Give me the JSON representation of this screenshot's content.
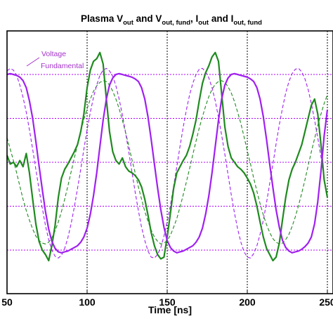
{
  "chart_data": {
    "type": "line",
    "title": {
      "parts": [
        {
          "text": "Plasma V",
          "sub": false
        },
        {
          "text": "out",
          "sub": true
        },
        {
          "text": " and V",
          "sub": false
        },
        {
          "text": "out, fund",
          "sub": true
        },
        {
          "text": ", I",
          "sub": false
        },
        {
          "text": "out",
          "sub": true
        },
        {
          "text": " and I",
          "sub": false
        },
        {
          "text": "out, fund",
          "sub": true
        }
      ]
    },
    "xlabel": "Time [ns]",
    "ylabel": "",
    "xlim": [
      50,
      250
    ],
    "xticks": [
      50,
      100,
      150,
      200,
      250
    ],
    "xtick_labels": [
      "50",
      "100",
      "150",
      "200",
      "250"
    ],
    "ylim": [
      -1.3,
      1.3
    ],
    "yticks": [
      -1.0,
      -0.5,
      0.0,
      0.5,
      1.0
    ],
    "grid": true,
    "annotations": [
      {
        "text": "Voltage"
      },
      {
        "text": "Fundamental"
      }
    ],
    "colors": {
      "voltage": "#a020f0",
      "current": "#1f8a1f",
      "x_grid": "#000000",
      "y_grid": "#b000ff"
    },
    "period_ns": 115,
    "series": [
      {
        "key": "vout",
        "style": "solid",
        "color": "#a020f0",
        "x": [
          50,
          52,
          54,
          56,
          58,
          60,
          62,
          64,
          66,
          68,
          70,
          72,
          74,
          76,
          78,
          80,
          82,
          84,
          86,
          88,
          90,
          92,
          94,
          96,
          98,
          100,
          102,
          104,
          106,
          108,
          110,
          112,
          114,
          116,
          118,
          120,
          122,
          124,
          126,
          128,
          130,
          132,
          134,
          136,
          138,
          140,
          142,
          144,
          146,
          148,
          150,
          152,
          154,
          156,
          158,
          160,
          162,
          164,
          166,
          168,
          170,
          172,
          174,
          176,
          178,
          180,
          182,
          184,
          186,
          188,
          190,
          192,
          194,
          196,
          198,
          200,
          202,
          204,
          206,
          208,
          210,
          212,
          214,
          216,
          218,
          220,
          222,
          224,
          226,
          228,
          230,
          232,
          234,
          236,
          238,
          240,
          242,
          244,
          246,
          248,
          250
        ],
        "y": [
          1.0,
          1.01,
          1.0,
          0.99,
          0.97,
          0.93,
          0.85,
          0.7,
          0.5,
          0.24,
          -0.04,
          -0.31,
          -0.56,
          -0.76,
          -0.9,
          -0.98,
          -1.02,
          -1.03,
          -1.02,
          -1.01,
          -0.99,
          -0.97,
          -0.95,
          -0.91,
          -0.85,
          -0.75,
          -0.59,
          -0.38,
          -0.12,
          0.18,
          0.48,
          0.72,
          0.88,
          0.96,
          1.0,
          1.01,
          1.0,
          0.99,
          0.98,
          0.97,
          0.95,
          0.92,
          0.85,
          0.72,
          0.52,
          0.26,
          -0.02,
          -0.29,
          -0.54,
          -0.74,
          -0.89,
          -0.97,
          -1.01,
          -1.03,
          -1.02,
          -1.01,
          -0.99,
          -0.97,
          -0.95,
          -0.91,
          -0.85,
          -0.75,
          -0.59,
          -0.38,
          -0.12,
          0.18,
          0.48,
          0.72,
          0.88,
          0.96,
          1.0,
          1.01,
          1.0,
          0.99,
          0.98,
          0.97,
          0.95,
          0.92,
          0.85,
          0.72,
          0.52,
          0.26,
          -0.02,
          -0.29,
          -0.54,
          -0.74,
          -0.89,
          -0.97,
          -1.01,
          -1.03,
          -1.02,
          -1.01,
          -0.99,
          -0.96,
          -0.92,
          -0.85,
          -0.7,
          -0.45,
          -0.1,
          0.3,
          0.6
        ]
      },
      {
        "key": "vout_fund",
        "style": "dashed",
        "color": "#a020f0",
        "x": [
          50,
          52,
          54,
          56,
          58,
          60,
          62,
          64,
          66,
          68,
          70,
          72,
          74,
          76,
          78,
          80,
          82,
          84,
          86,
          88,
          90,
          92,
          94,
          96,
          98,
          100,
          102,
          104,
          106,
          108,
          110,
          112,
          114,
          116,
          118,
          120,
          122,
          124,
          126,
          128,
          130,
          132,
          134,
          136,
          138,
          140,
          142,
          144,
          146,
          148,
          150,
          152,
          154,
          156,
          158,
          160,
          162,
          164,
          166,
          168,
          170,
          172,
          174,
          176,
          178,
          180,
          182,
          184,
          186,
          188,
          190,
          192,
          194,
          196,
          198,
          200,
          202,
          204,
          206,
          208,
          210,
          212,
          214,
          216,
          218,
          220,
          222,
          224,
          226,
          228,
          230,
          232,
          234,
          236,
          238,
          240,
          242,
          244,
          246,
          248,
          250
        ],
        "y": [
          1.04,
          1.07,
          1.05,
          0.99,
          0.88,
          0.74,
          0.57,
          0.37,
          0.15,
          -0.08,
          -0.31,
          -0.52,
          -0.72,
          -0.88,
          -1.0,
          -1.07,
          -1.09,
          -1.06,
          -0.98,
          -0.86,
          -0.7,
          -0.51,
          -0.3,
          -0.08,
          0.15,
          0.37,
          0.57,
          0.74,
          0.88,
          0.99,
          1.05,
          1.07,
          1.04,
          0.98,
          0.87,
          0.72,
          0.54,
          0.34,
          0.12,
          -0.11,
          -0.34,
          -0.55,
          -0.74,
          -0.89,
          -1.01,
          -1.08,
          -1.09,
          -1.05,
          -0.97,
          -0.84,
          -0.68,
          -0.49,
          -0.27,
          -0.05,
          0.18,
          0.4,
          0.6,
          0.77,
          0.9,
          1.0,
          1.06,
          1.07,
          1.03,
          0.96,
          0.85,
          0.7,
          0.51,
          0.31,
          0.09,
          -0.14,
          -0.37,
          -0.58,
          -0.76,
          -0.91,
          -1.02,
          -1.08,
          -1.09,
          -1.04,
          -0.95,
          -0.82,
          -0.66,
          -0.46,
          -0.24,
          -0.02,
          0.21,
          0.43,
          0.62,
          0.79,
          0.92,
          1.01,
          1.06,
          1.07,
          1.03,
          0.95,
          0.83,
          0.67,
          0.48,
          0.28,
          0.06,
          -0.17,
          -0.4
        ]
      },
      {
        "key": "iout",
        "style": "solid",
        "color": "#1f8a1f",
        "x": [
          50,
          52,
          54,
          56,
          58,
          60,
          62,
          64,
          66,
          68,
          70,
          72,
          74,
          76,
          78,
          80,
          82,
          84,
          86,
          88,
          90,
          92,
          94,
          96,
          98,
          100,
          102,
          104,
          106,
          108,
          110,
          112,
          114,
          116,
          118,
          120,
          122,
          124,
          126,
          128,
          130,
          132,
          134,
          136,
          138,
          140,
          142,
          144,
          146,
          148,
          150,
          152,
          154,
          156,
          158,
          160,
          162,
          164,
          166,
          168,
          170,
          172,
          174,
          176,
          178,
          180,
          182,
          184,
          186,
          188,
          190,
          192,
          194,
          196,
          198,
          200,
          202,
          204,
          206,
          208,
          210,
          212,
          214,
          216,
          218,
          220,
          222,
          224,
          226,
          228,
          230,
          232,
          234,
          236,
          238,
          240,
          242,
          244,
          246,
          248,
          250
        ],
        "y": [
          0.08,
          -0.02,
          0.0,
          -0.05,
          0.02,
          -0.05,
          0.1,
          -0.12,
          -0.42,
          -0.7,
          -0.9,
          -1.0,
          -1.05,
          -1.12,
          -0.95,
          -0.72,
          -0.4,
          -0.18,
          -0.08,
          -0.02,
          0.05,
          0.12,
          0.2,
          0.35,
          0.55,
          0.85,
          1.05,
          1.15,
          1.18,
          1.25,
          1.12,
          0.72,
          0.35,
          0.12,
          0.02,
          -0.02,
          0.05,
          -0.05,
          -0.1,
          -0.12,
          -0.15,
          -0.2,
          -0.28,
          -0.42,
          -0.6,
          -0.8,
          -0.95,
          -1.05,
          -1.1,
          -1.08,
          -0.85,
          -0.58,
          -0.3,
          -0.12,
          -0.05,
          0.02,
          0.08,
          0.18,
          0.32,
          0.48,
          0.7,
          0.9,
          1.02,
          1.1,
          1.2,
          1.25,
          1.15,
          0.78,
          0.4,
          0.18,
          0.05,
          0.0,
          -0.05,
          -0.08,
          -0.12,
          -0.18,
          -0.25,
          -0.35,
          -0.5,
          -0.68,
          -0.85,
          -0.98,
          -1.05,
          -1.12,
          -1.08,
          -0.92,
          -0.65,
          -0.4,
          -0.2,
          -0.08,
          0.0,
          0.1,
          0.2,
          0.35,
          0.5,
          0.65,
          0.72,
          0.55,
          0.2,
          -0.2,
          -0.4
        ]
      },
      {
        "key": "iout_fund",
        "style": "dashed",
        "color": "#1f8a1f",
        "x": [
          50,
          52,
          54,
          56,
          58,
          60,
          62,
          64,
          66,
          68,
          70,
          72,
          74,
          76,
          78,
          80,
          82,
          84,
          86,
          88,
          90,
          92,
          94,
          96,
          98,
          100,
          102,
          104,
          106,
          108,
          110,
          112,
          114,
          116,
          118,
          120,
          122,
          124,
          126,
          128,
          130,
          132,
          134,
          136,
          138,
          140,
          142,
          144,
          146,
          148,
          150,
          152,
          154,
          156,
          158,
          160,
          162,
          164,
          166,
          168,
          170,
          172,
          174,
          176,
          178,
          180,
          182,
          184,
          186,
          188,
          190,
          192,
          194,
          196,
          198,
          200,
          202,
          204,
          206,
          208,
          210,
          212,
          214,
          216,
          218,
          220,
          222,
          224,
          226,
          228,
          230,
          232,
          234,
          236,
          238,
          240,
          242,
          244,
          246,
          248,
          250
        ],
        "y": [
          0.28,
          0.15,
          0.02,
          -0.12,
          -0.27,
          -0.42,
          -0.55,
          -0.66,
          -0.76,
          -0.84,
          -0.89,
          -0.92,
          -0.93,
          -0.91,
          -0.86,
          -0.78,
          -0.68,
          -0.56,
          -0.42,
          -0.27,
          -0.11,
          0.05,
          0.2,
          0.35,
          0.49,
          0.61,
          0.72,
          0.81,
          0.87,
          0.91,
          0.93,
          0.92,
          0.88,
          0.81,
          0.72,
          0.61,
          0.48,
          0.34,
          0.19,
          0.03,
          -0.12,
          -0.28,
          -0.42,
          -0.56,
          -0.67,
          -0.77,
          -0.85,
          -0.9,
          -0.93,
          -0.92,
          -0.89,
          -0.83,
          -0.74,
          -0.64,
          -0.51,
          -0.37,
          -0.22,
          -0.07,
          0.09,
          0.24,
          0.39,
          0.52,
          0.64,
          0.75,
          0.83,
          0.89,
          0.92,
          0.93,
          0.91,
          0.86,
          0.79,
          0.69,
          0.57,
          0.44,
          0.29,
          0.13,
          -0.02,
          -0.18,
          -0.33,
          -0.47,
          -0.6,
          -0.71,
          -0.8,
          -0.87,
          -0.91,
          -0.93,
          -0.92,
          -0.88,
          -0.82,
          -0.73,
          -0.62,
          -0.49,
          -0.35,
          -0.2,
          -0.04,
          0.12,
          0.27,
          0.42,
          0.55,
          0.67,
          0.77
        ]
      }
    ]
  }
}
